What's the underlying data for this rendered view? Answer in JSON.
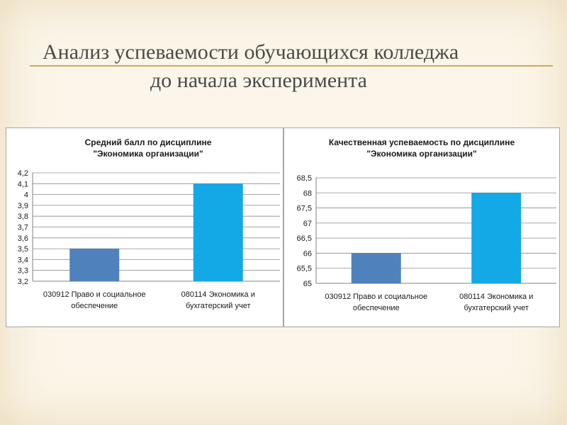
{
  "slide": {
    "title_line1": "Анализ успеваемости обучающихся колледжа",
    "title_line2": "до начала эксперимента"
  },
  "colors": {
    "series_1": "#4f81bd",
    "series_2": "#13a8e6",
    "title_rule": "#d9a55a"
  },
  "chart_data": [
    {
      "type": "bar",
      "title": [
        "Средний балл по дисциплине",
        "\"Экономика организации\""
      ],
      "categories": [
        [
          "030912 Право и социальное",
          "обеспечение"
        ],
        [
          "080114 Экономика и",
          "бухгатерский учет"
        ]
      ],
      "values": [
        3.5,
        4.1
      ],
      "ylim": [
        3.2,
        4.2
      ],
      "yticks": [
        "3,2",
        "3,3",
        "3,4",
        "3,5",
        "3,6",
        "3,7",
        "3,8",
        "3,9",
        "4",
        "4,1",
        "4,2"
      ],
      "grid": true,
      "legend": "none"
    },
    {
      "type": "bar",
      "title": [
        "Качественная успеваемость по дисциплине",
        "\"Экономика организации\""
      ],
      "categories": [
        [
          "030912 Право и социальное",
          "обеспечение"
        ],
        [
          "080114 Экономика и",
          "бухгатерский учет"
        ]
      ],
      "values": [
        66,
        68
      ],
      "ylim": [
        65,
        68.5
      ],
      "yticks": [
        "65",
        "65,5",
        "66",
        "66,5",
        "67",
        "67,5",
        "68",
        "68,5"
      ],
      "grid": true,
      "legend": "none"
    }
  ]
}
